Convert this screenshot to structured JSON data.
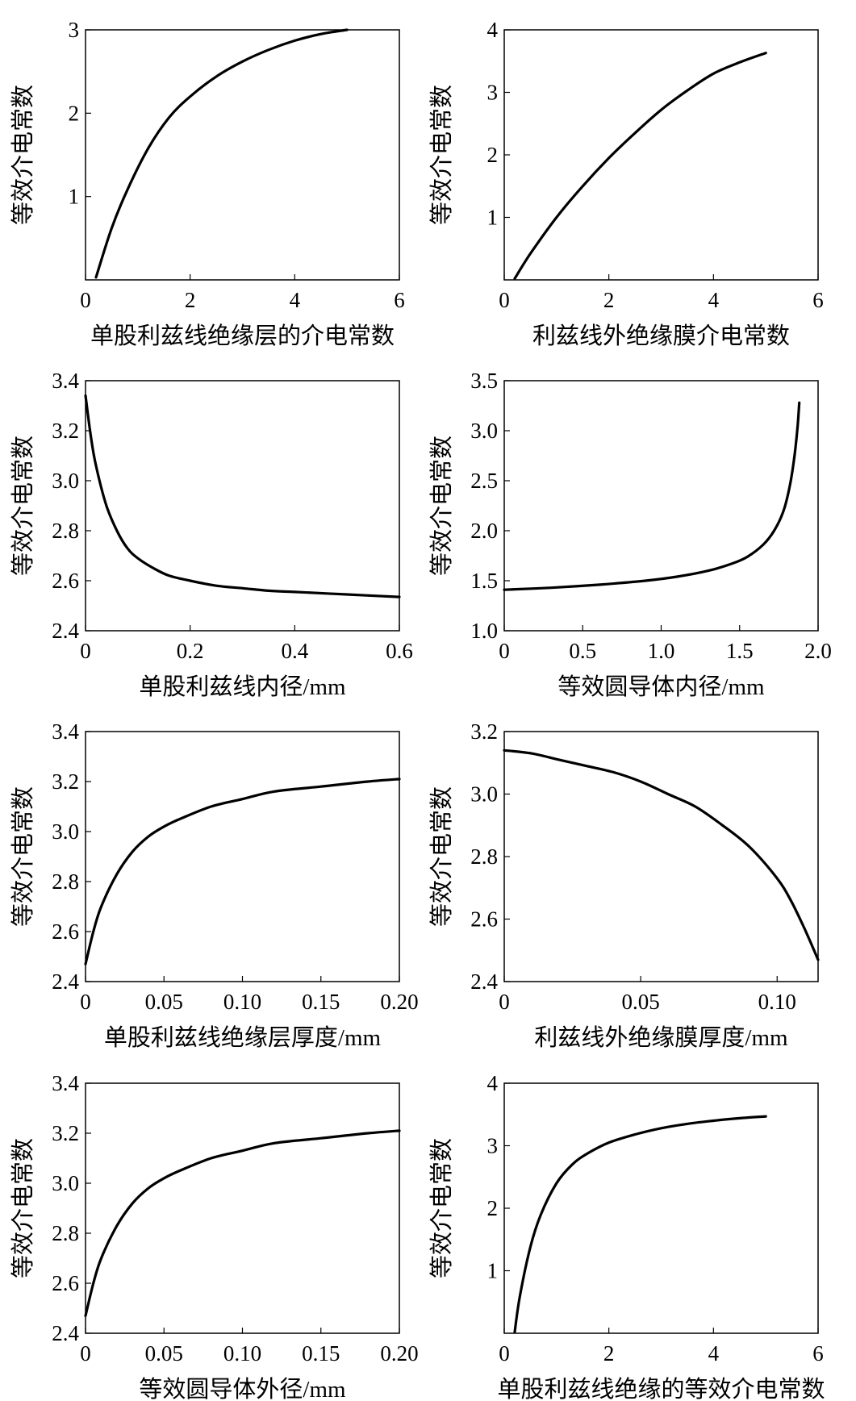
{
  "chart_data": [
    {
      "type": "line",
      "xlabel": "单股利兹线绝缘层的介电常数",
      "ylabel": "等效介电常数",
      "xlim": [
        0,
        6
      ],
      "ylim": [
        0,
        3
      ],
      "xticks": [
        "0",
        "2",
        "4",
        "6"
      ],
      "yticks": [
        "1",
        "2",
        "3"
      ],
      "grid": false,
      "series": [
        {
          "x": [
            0.2,
            0.5,
            0.8,
            1.2,
            1.6,
            2.0,
            2.5,
            3.0,
            3.5,
            4.0,
            4.5,
            5.0
          ],
          "y": [
            0.03,
            0.62,
            1.08,
            1.58,
            1.95,
            2.2,
            2.44,
            2.62,
            2.76,
            2.87,
            2.95,
            3.0
          ]
        }
      ]
    },
    {
      "type": "line",
      "xlabel": "利兹线外绝缘膜介电常数",
      "ylabel": "等效介电常数",
      "xlim": [
        0,
        6
      ],
      "ylim": [
        0,
        4
      ],
      "xticks": [
        "0",
        "2",
        "4",
        "6"
      ],
      "yticks": [
        "1",
        "2",
        "3",
        "4"
      ],
      "grid": false,
      "series": [
        {
          "x": [
            0.2,
            0.5,
            1.0,
            1.5,
            2.0,
            2.5,
            3.0,
            3.5,
            4.0,
            4.5,
            5.0
          ],
          "y": [
            0.02,
            0.42,
            1.0,
            1.5,
            1.95,
            2.35,
            2.72,
            3.03,
            3.3,
            3.48,
            3.63
          ]
        }
      ]
    },
    {
      "type": "line",
      "xlabel": "单股利兹线内径/mm",
      "ylabel": "等效介电常数",
      "xlim": [
        0,
        0.6
      ],
      "ylim": [
        2.4,
        3.4
      ],
      "xticks": [
        "0",
        "0.2",
        "0.4",
        "0.6"
      ],
      "yticks": [
        "2.4",
        "2.6",
        "2.8",
        "3.0",
        "3.2",
        "3.4"
      ],
      "grid": false,
      "series": [
        {
          "x": [
            0.0,
            0.01,
            0.02,
            0.04,
            0.06,
            0.08,
            0.1,
            0.13,
            0.16,
            0.2,
            0.25,
            0.3,
            0.35,
            0.4,
            0.5,
            0.6
          ],
          "y": [
            3.34,
            3.18,
            3.06,
            2.9,
            2.8,
            2.73,
            2.69,
            2.65,
            2.62,
            2.6,
            2.58,
            2.57,
            2.56,
            2.555,
            2.545,
            2.535
          ]
        }
      ]
    },
    {
      "type": "line",
      "xlabel": "等效圆导体内径/mm",
      "ylabel": "等效介电常数",
      "xlim": [
        0,
        2.0
      ],
      "ylim": [
        1.0,
        3.5
      ],
      "xticks": [
        "0",
        "0.5",
        "1.0",
        "1.5",
        "2.0"
      ],
      "yticks": [
        "1.0",
        "1.5",
        "2.0",
        "2.5",
        "3.0",
        "3.5"
      ],
      "grid": false,
      "series": [
        {
          "x": [
            0.0,
            0.3,
            0.6,
            0.9,
            1.1,
            1.3,
            1.45,
            1.55,
            1.65,
            1.72,
            1.78,
            1.82,
            1.85,
            1.87,
            1.88
          ],
          "y": [
            1.41,
            1.43,
            1.46,
            1.5,
            1.54,
            1.6,
            1.67,
            1.74,
            1.86,
            2.0,
            2.2,
            2.45,
            2.75,
            3.05,
            3.28
          ]
        }
      ]
    },
    {
      "type": "line",
      "xlabel": "单股利兹线绝缘层厚度/mm",
      "ylabel": "等效介电常数",
      "xlim": [
        0,
        0.2
      ],
      "ylim": [
        2.4,
        3.4
      ],
      "xticks": [
        "0",
        "0.05",
        "0.10",
        "0.15",
        "0.20"
      ],
      "yticks": [
        "2.4",
        "2.6",
        "2.8",
        "3.0",
        "3.2",
        "3.4"
      ],
      "grid": false,
      "series": [
        {
          "x": [
            0.0,
            0.005,
            0.01,
            0.02,
            0.03,
            0.04,
            0.05,
            0.06,
            0.08,
            0.1,
            0.12,
            0.15,
            0.18,
            0.2
          ],
          "y": [
            2.47,
            2.6,
            2.7,
            2.83,
            2.92,
            2.98,
            3.02,
            3.05,
            3.1,
            3.13,
            3.16,
            3.18,
            3.2,
            3.21
          ]
        }
      ]
    },
    {
      "type": "line",
      "xlabel": "利兹线外绝缘膜厚度/mm",
      "ylabel": "等效介电常数",
      "xlim": [
        0,
        0.115
      ],
      "ylim": [
        2.4,
        3.2
      ],
      "xticks": [
        "0",
        "0.05",
        "0.10"
      ],
      "yticks": [
        "2.4",
        "2.6",
        "2.8",
        "3.0",
        "3.2"
      ],
      "grid": false,
      "series": [
        {
          "x": [
            0.0,
            0.01,
            0.02,
            0.03,
            0.04,
            0.05,
            0.06,
            0.07,
            0.08,
            0.09,
            0.1,
            0.105,
            0.11,
            0.115
          ],
          "y": [
            3.14,
            3.13,
            3.11,
            3.09,
            3.07,
            3.04,
            3.0,
            2.96,
            2.9,
            2.83,
            2.73,
            2.66,
            2.57,
            2.47
          ]
        }
      ]
    },
    {
      "type": "line",
      "xlabel": "等效圆导体外径/mm",
      "ylabel": "等效介电常数",
      "xlim": [
        0,
        0.2
      ],
      "ylim": [
        2.4,
        3.4
      ],
      "xticks": [
        "0",
        "0.05",
        "0.10",
        "0.15",
        "0.20"
      ],
      "yticks": [
        "2.4",
        "2.6",
        "2.8",
        "3.0",
        "3.2",
        "3.4"
      ],
      "grid": false,
      "series": [
        {
          "x": [
            0.0,
            0.005,
            0.01,
            0.02,
            0.03,
            0.04,
            0.05,
            0.06,
            0.08,
            0.1,
            0.12,
            0.15,
            0.18,
            0.2
          ],
          "y": [
            2.47,
            2.6,
            2.7,
            2.83,
            2.92,
            2.98,
            3.02,
            3.05,
            3.1,
            3.13,
            3.16,
            3.18,
            3.2,
            3.21
          ]
        }
      ]
    },
    {
      "type": "line",
      "xlabel": "单股利兹线绝缘的等效介电常数",
      "ylabel": "等效介电常数",
      "xlim": [
        0,
        6
      ],
      "ylim": [
        0,
        4
      ],
      "xticks": [
        "0",
        "2",
        "4",
        "6"
      ],
      "yticks": [
        "1",
        "2",
        "3",
        "4"
      ],
      "grid": false,
      "series": [
        {
          "x": [
            0.2,
            0.3,
            0.5,
            0.7,
            1.0,
            1.3,
            1.6,
            2.0,
            2.5,
            3.0,
            3.5,
            4.0,
            4.5,
            5.0
          ],
          "y": [
            0.02,
            0.6,
            1.38,
            1.9,
            2.4,
            2.7,
            2.88,
            3.05,
            3.18,
            3.28,
            3.35,
            3.4,
            3.44,
            3.47
          ]
        }
      ]
    }
  ]
}
